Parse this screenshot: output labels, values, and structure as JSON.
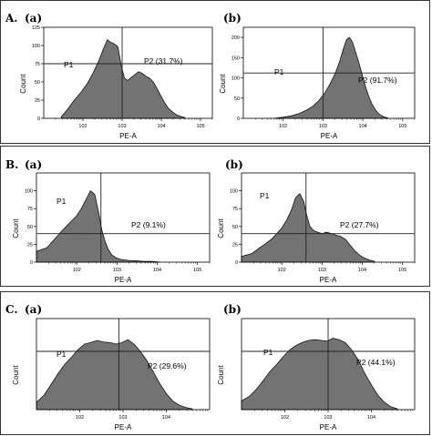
{
  "figure": {
    "rows": [
      {
        "label": "A.",
        "panels": [
          "(a)",
          "(b)"
        ]
      },
      {
        "label": "B.",
        "panels": [
          "(a)",
          "(b)"
        ]
      },
      {
        "label": "C.",
        "panels": [
          "(a)",
          "(b)"
        ]
      }
    ],
    "colors": {
      "fill": "#737373",
      "stroke": "#111111",
      "gate": "#222222"
    }
  },
  "chart_data": [
    {
      "type": "area",
      "panel": "A.(a)",
      "xlabel": "PE-A",
      "ylabel": "Count",
      "xscale": "log",
      "xlim": [
        10,
        200000
      ],
      "ylim": [
        0,
        125
      ],
      "xticks": [
        "10^2",
        "10^3",
        "10^4",
        "10^5"
      ],
      "yticks": [
        0,
        25,
        50,
        75,
        100,
        125
      ],
      "gate_x": 1000,
      "gate_y": 75,
      "gates": [
        {
          "name": "P1",
          "label": "P1"
        },
        {
          "name": "P2",
          "label": "P2 (31.7%)",
          "percent": 31.7
        }
      ],
      "series": [
        {
          "x": [
            28,
            40,
            60,
            90,
            130,
            180,
            250,
            330,
            420,
            520,
            640,
            780,
            950,
            1150,
            1400,
            1700,
            2100,
            2600,
            3200,
            4000,
            5000,
            6200,
            7600,
            9500,
            12000,
            15000,
            19000,
            24000,
            30000,
            40000
          ],
          "values": [
            2,
            12,
            25,
            36,
            48,
            62,
            78,
            95,
            108,
            104,
            102,
            98,
            72,
            55,
            52,
            56,
            60,
            64,
            62,
            58,
            55,
            50,
            42,
            32,
            22,
            14,
            9,
            5,
            3,
            1
          ]
        }
      ]
    },
    {
      "type": "area",
      "panel": "A.(b)",
      "xlabel": "PE-A",
      "ylabel": "Count",
      "xscale": "log",
      "xlim": [
        10,
        200000
      ],
      "ylim": [
        0,
        225
      ],
      "xticks": [
        "10^2",
        "10^3",
        "10^4",
        "10^5"
      ],
      "yticks": [
        0,
        50,
        100,
        150,
        200
      ],
      "gate_x": 1000,
      "gate_y": 112,
      "gates": [
        {
          "name": "P1",
          "label": "P1"
        },
        {
          "name": "P2",
          "label": "P2 (91.7%)",
          "percent": 91.7
        }
      ],
      "series": [
        {
          "x": [
            60,
            100,
            160,
            250,
            380,
            560,
            800,
            1100,
            1500,
            2000,
            2600,
            3200,
            3900,
            4600,
            5500,
            6500,
            7800,
            9500,
            11500,
            14000,
            17000,
            21000,
            26000,
            33000,
            42000
          ],
          "values": [
            0,
            3,
            6,
            12,
            20,
            30,
            45,
            62,
            85,
            110,
            140,
            170,
            195,
            200,
            188,
            165,
            140,
            110,
            80,
            55,
            35,
            20,
            10,
            4,
            1
          ]
        }
      ]
    },
    {
      "type": "area",
      "panel": "B.(a)",
      "xlabel": "PE-A",
      "ylabel": "Count",
      "xscale": "log",
      "xlim": [
        10,
        200000
      ],
      "ylim": [
        0,
        125
      ],
      "xticks": [
        "10^2",
        "10^3",
        "10^4",
        "10^5"
      ],
      "yticks": [
        0,
        25,
        50,
        75,
        100
      ],
      "gate_x": 400,
      "gate_y": 40,
      "gates": [
        {
          "name": "P1",
          "label": "P1"
        },
        {
          "name": "P2",
          "label": "P2 (9.1%)",
          "percent": 9.1
        }
      ],
      "series": [
        {
          "x": [
            10,
            18,
            28,
            40,
            55,
            75,
            100,
            130,
            170,
            220,
            280,
            350,
            420,
            500,
            600,
            750,
            950,
            1200,
            1600,
            2200,
            3000,
            4500,
            7000,
            12000
          ],
          "values": [
            15,
            20,
            32,
            42,
            50,
            58,
            65,
            75,
            88,
            100,
            95,
            70,
            45,
            30,
            18,
            10,
            6,
            4,
            3,
            2,
            2,
            1,
            1,
            0
          ]
        }
      ]
    },
    {
      "type": "area",
      "panel": "B.(b)",
      "xlabel": "PE-A",
      "ylabel": "Count",
      "xscale": "log",
      "xlim": [
        10,
        200000
      ],
      "ylim": [
        0,
        125
      ],
      "xticks": [
        "10^2",
        "10^3",
        "10^4",
        "10^5"
      ],
      "yticks": [
        0,
        25,
        50,
        75,
        100
      ],
      "gate_x": 400,
      "gate_y": 40,
      "gates": [
        {
          "name": "P1",
          "label": "P1"
        },
        {
          "name": "P2",
          "label": "P2 (27.7%)",
          "percent": 27.7
        }
      ],
      "series": [
        {
          "x": [
            10,
            18,
            28,
            40,
            55,
            75,
            100,
            130,
            170,
            220,
            280,
            350,
            420,
            500,
            620,
            780,
            1000,
            1300,
            1700,
            2200,
            2900,
            3800,
            5000,
            6500,
            8500,
            11000,
            15000,
            20000
          ],
          "values": [
            8,
            12,
            20,
            26,
            32,
            40,
            48,
            58,
            72,
            90,
            96,
            85,
            65,
            50,
            44,
            42,
            40,
            42,
            40,
            38,
            36,
            32,
            24,
            16,
            10,
            6,
            3,
            1
          ]
        }
      ]
    },
    {
      "type": "area",
      "panel": "C.(a)",
      "xlabel": "PE-A",
      "ylabel": "Count",
      "xscale": "log",
      "xlim": [
        10,
        100000
      ],
      "ylim": [
        0,
        125
      ],
      "xticks": [
        "10^2",
        "10^3",
        "10^4"
      ],
      "yticks": [],
      "gate_x": 800,
      "gate_y": 80,
      "gates": [
        {
          "name": "P1",
          "label": "P1"
        },
        {
          "name": "P2",
          "label": "P2 (29.6%)",
          "percent": 29.6
        }
      ],
      "series": [
        {
          "x": [
            10,
            15,
            22,
            32,
            45,
            65,
            90,
            130,
            180,
            250,
            350,
            500,
            700,
            950,
            1300,
            1800,
            2500,
            3500,
            5000,
            7000,
            10000,
            14000,
            20000,
            28000,
            40000
          ],
          "values": [
            10,
            20,
            35,
            50,
            62,
            72,
            82,
            90,
            92,
            95,
            93,
            92,
            90,
            92,
            96,
            90,
            80,
            68,
            52,
            36,
            22,
            12,
            6,
            3,
            1
          ]
        }
      ]
    },
    {
      "type": "area",
      "panel": "C.(b)",
      "xlabel": "PE-A",
      "ylabel": "Count",
      "xscale": "log",
      "xlim": [
        10,
        100000
      ],
      "ylim": [
        0,
        125
      ],
      "xticks": [
        "10^2",
        "10^3",
        "10^4"
      ],
      "yticks": [],
      "gate_x": 1000,
      "gate_y": 80,
      "gates": [
        {
          "name": "P1",
          "label": "P1"
        },
        {
          "name": "P2",
          "label": "P2 (44.1%)",
          "percent": 44.1
        }
      ],
      "series": [
        {
          "x": [
            10,
            15,
            22,
            32,
            45,
            65,
            90,
            130,
            180,
            250,
            350,
            500,
            700,
            950,
            1300,
            1800,
            2500,
            3500,
            5000,
            7000,
            10000,
            14000,
            20000,
            28000,
            40000
          ],
          "values": [
            12,
            18,
            28,
            40,
            52,
            62,
            72,
            82,
            88,
            92,
            95,
            96,
            95,
            94,
            98,
            96,
            92,
            82,
            68,
            50,
            34,
            20,
            10,
            4,
            1
          ]
        }
      ]
    }
  ]
}
